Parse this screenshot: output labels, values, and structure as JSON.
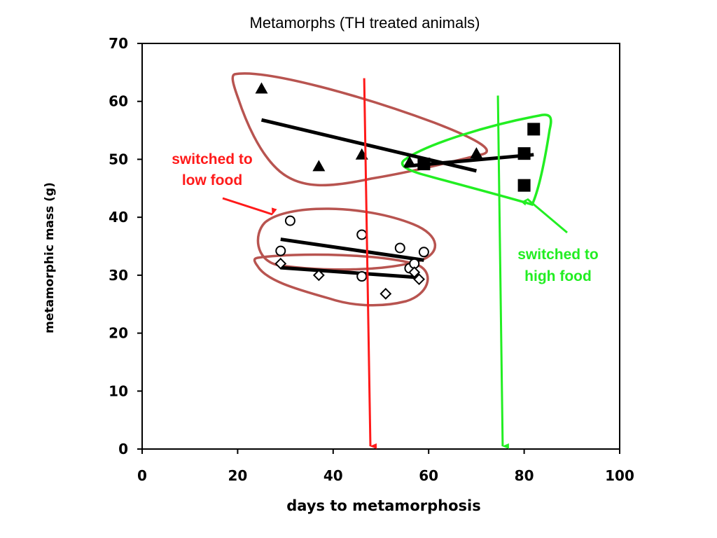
{
  "chart_data": {
    "type": "scatter",
    "title": "Metamorphs (TH treated animals)",
    "xlabel": "days to metamorphosis",
    "ylabel": "metamorphic mass (g)",
    "xlim": [
      0,
      100
    ],
    "ylim": [
      0,
      70
    ],
    "x_ticks": [
      "0",
      "20",
      "40",
      "60",
      "80",
      "100"
    ],
    "y_ticks": [
      "0",
      "10",
      "20",
      "30",
      "40",
      "50",
      "60",
      "70"
    ],
    "grid": false,
    "legend": "none",
    "series": [
      {
        "marker": "triangle",
        "color": "#000000",
        "points": [
          [
            25,
            62.2
          ],
          [
            37,
            48.8
          ],
          [
            46,
            50.8
          ],
          [
            56,
            49.5
          ],
          [
            70,
            51
          ]
        ],
        "trend": [
          [
            25,
            56.8
          ],
          [
            70,
            48
          ]
        ]
      },
      {
        "marker": "square",
        "color": "#000000",
        "points": [
          [
            59,
            49.2
          ],
          [
            80,
            51
          ],
          [
            80,
            45.5
          ],
          [
            82,
            55.2
          ]
        ],
        "trend": [
          [
            55,
            48.8
          ],
          [
            82,
            50.8
          ]
        ]
      },
      {
        "marker": "circle-open",
        "color": "#000000",
        "points": [
          [
            29,
            34.2
          ],
          [
            31,
            39.4
          ],
          [
            46,
            37
          ],
          [
            46,
            29.8
          ],
          [
            54,
            34.7
          ],
          [
            56,
            31.2
          ],
          [
            57,
            32
          ],
          [
            59,
            34
          ]
        ],
        "trend": [
          [
            29,
            36.2
          ],
          [
            59,
            32.6
          ]
        ]
      },
      {
        "marker": "diamond-open",
        "color": "#000000",
        "points": [
          [
            29,
            32
          ],
          [
            37,
            30
          ],
          [
            51,
            26.8
          ],
          [
            57,
            30.5
          ],
          [
            58,
            29.3
          ]
        ],
        "trend": [
          [
            29,
            31.3
          ],
          [
            58,
            29.6
          ]
        ]
      }
    ],
    "annotations": [
      {
        "text_lines": [
          "switched to",
          "low food"
        ],
        "color": "#ff1a1a"
      },
      {
        "text_lines": [
          "switched to",
          "high food"
        ],
        "color": "#22ee22"
      }
    ],
    "vertical_arrows": [
      {
        "color": "#ff1a1a",
        "x_from": 46.5,
        "x_to": 47.8,
        "y_from": 64,
        "y_to": 0
      },
      {
        "color": "#22ee22",
        "x_from": 74.5,
        "x_to": 75.5,
        "y_from": 61,
        "y_to": 0
      }
    ],
    "outline_color": "#b85450"
  }
}
